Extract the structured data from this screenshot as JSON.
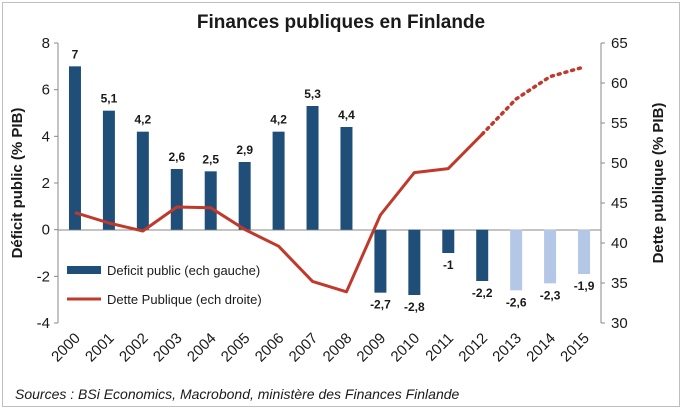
{
  "chart_data": {
    "type": "bar+line",
    "title": "Finances publiques en Finlande",
    "categories": [
      "2000",
      "2001",
      "2002",
      "2003",
      "2004",
      "2005",
      "2006",
      "2007",
      "2008",
      "2009",
      "2010",
      "2011",
      "2012",
      "2013",
      "2014",
      "2015"
    ],
    "series": [
      {
        "name": "Deficit public (ech gauche)",
        "type": "bar",
        "axis": "left",
        "values": [
          7,
          5.1,
          4.2,
          2.6,
          2.5,
          2.9,
          4.2,
          5.3,
          4.4,
          -2.7,
          -2.8,
          -1,
          -2.2,
          -2.6,
          -2.3,
          -1.9
        ],
        "labels": [
          "7",
          "5,1",
          "4,2",
          "2,6",
          "2,5",
          "2,9",
          "4,2",
          "5,3",
          "4,4",
          "-2,7",
          "-2,8",
          "-1",
          "-2,2",
          "-2,6",
          "-2,3",
          "-1,9"
        ],
        "forecast_from": "2013",
        "color": "#1f4e79",
        "forecast_color": "#b4c7e7"
      },
      {
        "name": "Dette Publique (ech droite)",
        "type": "line",
        "axis": "right",
        "values": [
          43.8,
          42.5,
          41.5,
          44.5,
          44.4,
          41.7,
          39.6,
          35.2,
          33.9,
          43.5,
          48.8,
          49.3,
          53.6,
          58.0,
          60.8,
          62.0
        ],
        "forecast_from": "2013",
        "color": "#c0392b"
      }
    ],
    "ylabel_left": "Déficit public (% PIB)",
    "ylabel_right": "Dette publique (% PIB)",
    "ylim_left": [
      -4,
      8
    ],
    "yticks_left": [
      "8",
      "6",
      "4",
      "2",
      "0",
      "-2",
      "-4"
    ],
    "ylim_right": [
      30,
      65
    ],
    "yticks_right": [
      "65",
      "60",
      "55",
      "50",
      "45",
      "40",
      "35",
      "30"
    ],
    "grid": false,
    "legend_position": "bottom-left inside plot"
  },
  "source": "Sources : BSi Economics, Macrobond, ministère des Finances Finlande"
}
